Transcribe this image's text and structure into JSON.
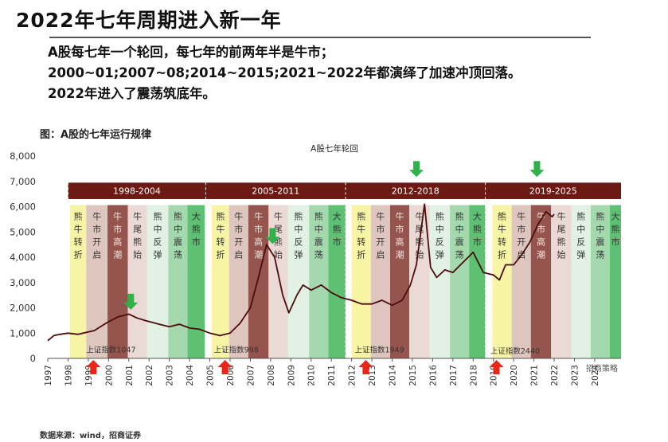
{
  "header": {
    "title": "2022年七年周期进入新一年",
    "lines": [
      "A股每七年一个轮回，每七年的前两年半是牛市；",
      "2000~01;2007~08;2014~2015;2021~2022年都演绎了加速冲顶回落。",
      "2022年进入了震荡筑底年。"
    ],
    "figure_label": "图：A股的七年运行规律"
  },
  "source": "数据来源：wind，招商证券",
  "chart_data": {
    "type": "line",
    "title": "A股七年轮回",
    "watermark": "招商策略",
    "ylim": [
      0,
      8000
    ],
    "yticks": [
      "8,000",
      "7,000",
      "6,000",
      "5,000",
      "4,000",
      "3,000",
      "2,000",
      "1,000",
      "0"
    ],
    "ytick_values": [
      8000,
      7000,
      6000,
      5000,
      4000,
      3000,
      2000,
      1000,
      0
    ],
    "xlim": [
      1997,
      2025.3
    ],
    "xticks": [
      "1997",
      "1998",
      "1999",
      "2000",
      "2001",
      "2002",
      "2003",
      "2004",
      "2005",
      "2006",
      "2007",
      "2008",
      "2009",
      "2010",
      "2011",
      "2012",
      "2013",
      "2014",
      "2015",
      "2016",
      "2017",
      "2018",
      "2019",
      "2020",
      "2021",
      "2022",
      "2023",
      "2024"
    ],
    "cycles": [
      {
        "label": "1998-2004",
        "start": 1998.0,
        "end": 2004.8
      },
      {
        "label": "2005-2011",
        "start": 2004.8,
        "end": 2011.7
      },
      {
        "label": "2012-2018",
        "start": 2011.7,
        "end": 2018.6
      },
      {
        "label": "2019-2025",
        "start": 2018.6,
        "end": 2025.3
      }
    ],
    "phases": [
      {
        "label": "熊牛转折",
        "start": 1998.1,
        "end": 1998.9,
        "color": "#f7f3a0"
      },
      {
        "label": "牛市开启",
        "start": 1998.9,
        "end": 1999.95,
        "color": "#dcc3bc"
      },
      {
        "label": "牛市高潮",
        "start": 1999.95,
        "end": 2000.95,
        "color": "#8f4c44"
      },
      {
        "label": "牛尾熊始",
        "start": 2000.95,
        "end": 2001.9,
        "color": "#ead7d3"
      },
      {
        "label": "熊中反弹",
        "start": 2001.9,
        "end": 2002.95,
        "color": "#dff1e3"
      },
      {
        "label": "熊中震荡",
        "start": 2002.95,
        "end": 2003.9,
        "color": "#9fd7aa"
      },
      {
        "label": "大熊市",
        "start": 2003.9,
        "end": 2004.75,
        "color": "#54bd6c"
      },
      {
        "label": "熊牛转折",
        "start": 2005.1,
        "end": 2005.95,
        "color": "#f7f3a0"
      },
      {
        "label": "牛市开启",
        "start": 2005.95,
        "end": 2006.9,
        "color": "#dcc3bc"
      },
      {
        "label": "牛市高潮",
        "start": 2006.9,
        "end": 2007.9,
        "color": "#8f4c44"
      },
      {
        "label": "牛尾熊始",
        "start": 2007.9,
        "end": 2008.85,
        "color": "#ead7d3"
      },
      {
        "label": "熊中反弹",
        "start": 2008.85,
        "end": 2009.9,
        "color": "#dff1e3"
      },
      {
        "label": "熊中震荡",
        "start": 2009.9,
        "end": 2010.85,
        "color": "#9fd7aa"
      },
      {
        "label": "大熊市",
        "start": 2010.85,
        "end": 2011.7,
        "color": "#54bd6c"
      },
      {
        "label": "熊牛转折",
        "start": 2012.0,
        "end": 2012.95,
        "color": "#f7f3a0"
      },
      {
        "label": "牛市开启",
        "start": 2012.95,
        "end": 2013.9,
        "color": "#dcc3bc"
      },
      {
        "label": "牛市高潮",
        "start": 2013.9,
        "end": 2014.85,
        "color": "#8f4c44"
      },
      {
        "label": "牛尾熊始",
        "start": 2014.85,
        "end": 2015.85,
        "color": "#ead7d3"
      },
      {
        "label": "熊中反弹",
        "start": 2015.85,
        "end": 2016.85,
        "color": "#dff1e3"
      },
      {
        "label": "熊中震荡",
        "start": 2016.85,
        "end": 2017.8,
        "color": "#9fd7aa"
      },
      {
        "label": "大熊市",
        "start": 2017.8,
        "end": 2018.6,
        "color": "#54bd6c"
      },
      {
        "label": "熊牛转折",
        "start": 2018.95,
        "end": 2019.9,
        "color": "#f7f3a0"
      },
      {
        "label": "牛市开启",
        "start": 2019.9,
        "end": 2020.85,
        "color": "#dcc3bc"
      },
      {
        "label": "牛市高潮",
        "start": 2020.85,
        "end": 2021.85,
        "color": "#8f4c44"
      },
      {
        "label": "牛尾熊始",
        "start": 2021.85,
        "end": 2022.85,
        "color": "#ead7d3"
      },
      {
        "label": "熊中反弹",
        "start": 2022.85,
        "end": 2023.8,
        "color": "#dff1e3"
      },
      {
        "label": "熊中震荡",
        "start": 2023.8,
        "end": 2024.75,
        "color": "#9fd7aa"
      },
      {
        "label": "大熊市",
        "start": 2024.75,
        "end": 2025.3,
        "color": "#54bd6c"
      }
    ],
    "series": [
      {
        "x": [
          1997.0,
          1997.3,
          1997.6,
          1998.0,
          1998.5,
          1999.0,
          1999.3,
          1999.6,
          2000.0,
          2000.5,
          2001.0,
          2001.4,
          2001.8,
          2002.5,
          2003.0,
          2003.5,
          2004.0,
          2004.5,
          2005.0,
          2005.5,
          2006.0,
          2006.5,
          2007.0,
          2007.4,
          2007.8,
          2008.2,
          2008.6,
          2008.9,
          2009.3,
          2009.6,
          2010.0,
          2010.5,
          2011.0,
          2011.5,
          2012.0,
          2012.5,
          2013.0,
          2013.5,
          2014.0,
          2014.5,
          2014.9,
          2015.2,
          2015.45,
          2015.6,
          2015.9,
          2016.2,
          2016.6,
          2017.0,
          2017.5,
          2018.0,
          2018.5,
          2019.0,
          2019.3,
          2019.6,
          2020.0,
          2020.4,
          2020.8,
          2021.2,
          2021.6,
          2021.9,
          2022.0
        ],
        "y": [
          700,
          900,
          950,
          1000,
          950,
          1050,
          1100,
          1250,
          1450,
          1650,
          1750,
          1600,
          1500,
          1350,
          1250,
          1350,
          1200,
          1150,
          1000,
          900,
          1000,
          1400,
          2000,
          3200,
          4500,
          4000,
          2500,
          1800,
          2500,
          2900,
          2700,
          2900,
          2600,
          2400,
          2300,
          2150,
          2150,
          2300,
          2100,
          2300,
          2900,
          3700,
          5200,
          6100,
          3600,
          3200,
          3500,
          3400,
          3800,
          4200,
          3400,
          3300,
          3100,
          3700,
          3700,
          4100,
          4600,
          5300,
          5800,
          5600,
          5700
        ]
      }
    ],
    "annotations": [
      {
        "text": "上证指数1047",
        "x": 1998.9,
        "y": 180
      },
      {
        "text": "上证指数998",
        "x": 2005.2,
        "y": 180
      },
      {
        "text": "上证指数1949",
        "x": 2012.15,
        "y": 180
      },
      {
        "text": "上证指数2440",
        "x": 2018.85,
        "y": 120
      }
    ],
    "up_arrows": [
      1999.25,
      2005.75,
      2012.7,
      2019.15
    ],
    "down_arrows": [
      {
        "x": 2001.1,
        "y": 2050
      },
      {
        "x": 2008.1,
        "y": 4650
      },
      {
        "x": 2015.2,
        "y": 7300
      },
      {
        "x": 2021.15,
        "y": 7300
      }
    ]
  }
}
